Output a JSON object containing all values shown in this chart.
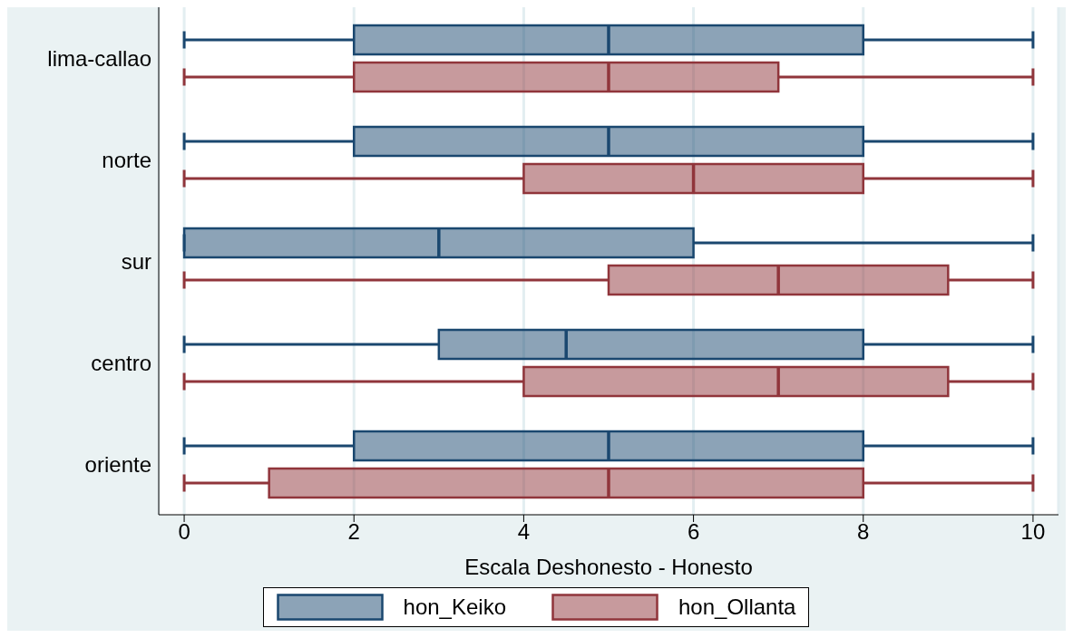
{
  "chart_data": {
    "type": "box",
    "orientation": "horizontal",
    "xlabel": "Escala Deshonesto - Honesto",
    "categories": [
      "lima-callao",
      "norte",
      "sur",
      "centro",
      "oriente"
    ],
    "series": [
      {
        "name": "hon_Keiko",
        "color": "#1a476f",
        "boxes": [
          {
            "low": 0,
            "q1": 2,
            "median": 5,
            "q3": 8,
            "high": 10
          },
          {
            "low": 0,
            "q1": 2,
            "median": 5,
            "q3": 8,
            "high": 10
          },
          {
            "low": 0,
            "q1": 0,
            "median": 3,
            "q3": 6,
            "high": 10
          },
          {
            "low": 0,
            "q1": 3,
            "median": 4.5,
            "q3": 8,
            "high": 10
          },
          {
            "low": 0,
            "q1": 2,
            "median": 5,
            "q3": 8,
            "high": 10
          }
        ]
      },
      {
        "name": "hon_Ollanta",
        "color": "#90353b",
        "boxes": [
          {
            "low": 0,
            "q1": 2,
            "median": 5,
            "q3": 7,
            "high": 10
          },
          {
            "low": 0,
            "q1": 4,
            "median": 6,
            "q3": 8,
            "high": 10
          },
          {
            "low": 0,
            "q1": 5,
            "median": 7,
            "q3": 9,
            "high": 10
          },
          {
            "low": 0,
            "q1": 4,
            "median": 7,
            "q3": 9,
            "high": 10
          },
          {
            "low": 0,
            "q1": 1,
            "median": 5,
            "q3": 8,
            "high": 10
          }
        ]
      }
    ],
    "xlim": [
      -0.3,
      10.3
    ],
    "xticks": [
      0,
      2,
      4,
      6,
      8,
      10
    ],
    "grid": "x",
    "legend": "bottom"
  }
}
